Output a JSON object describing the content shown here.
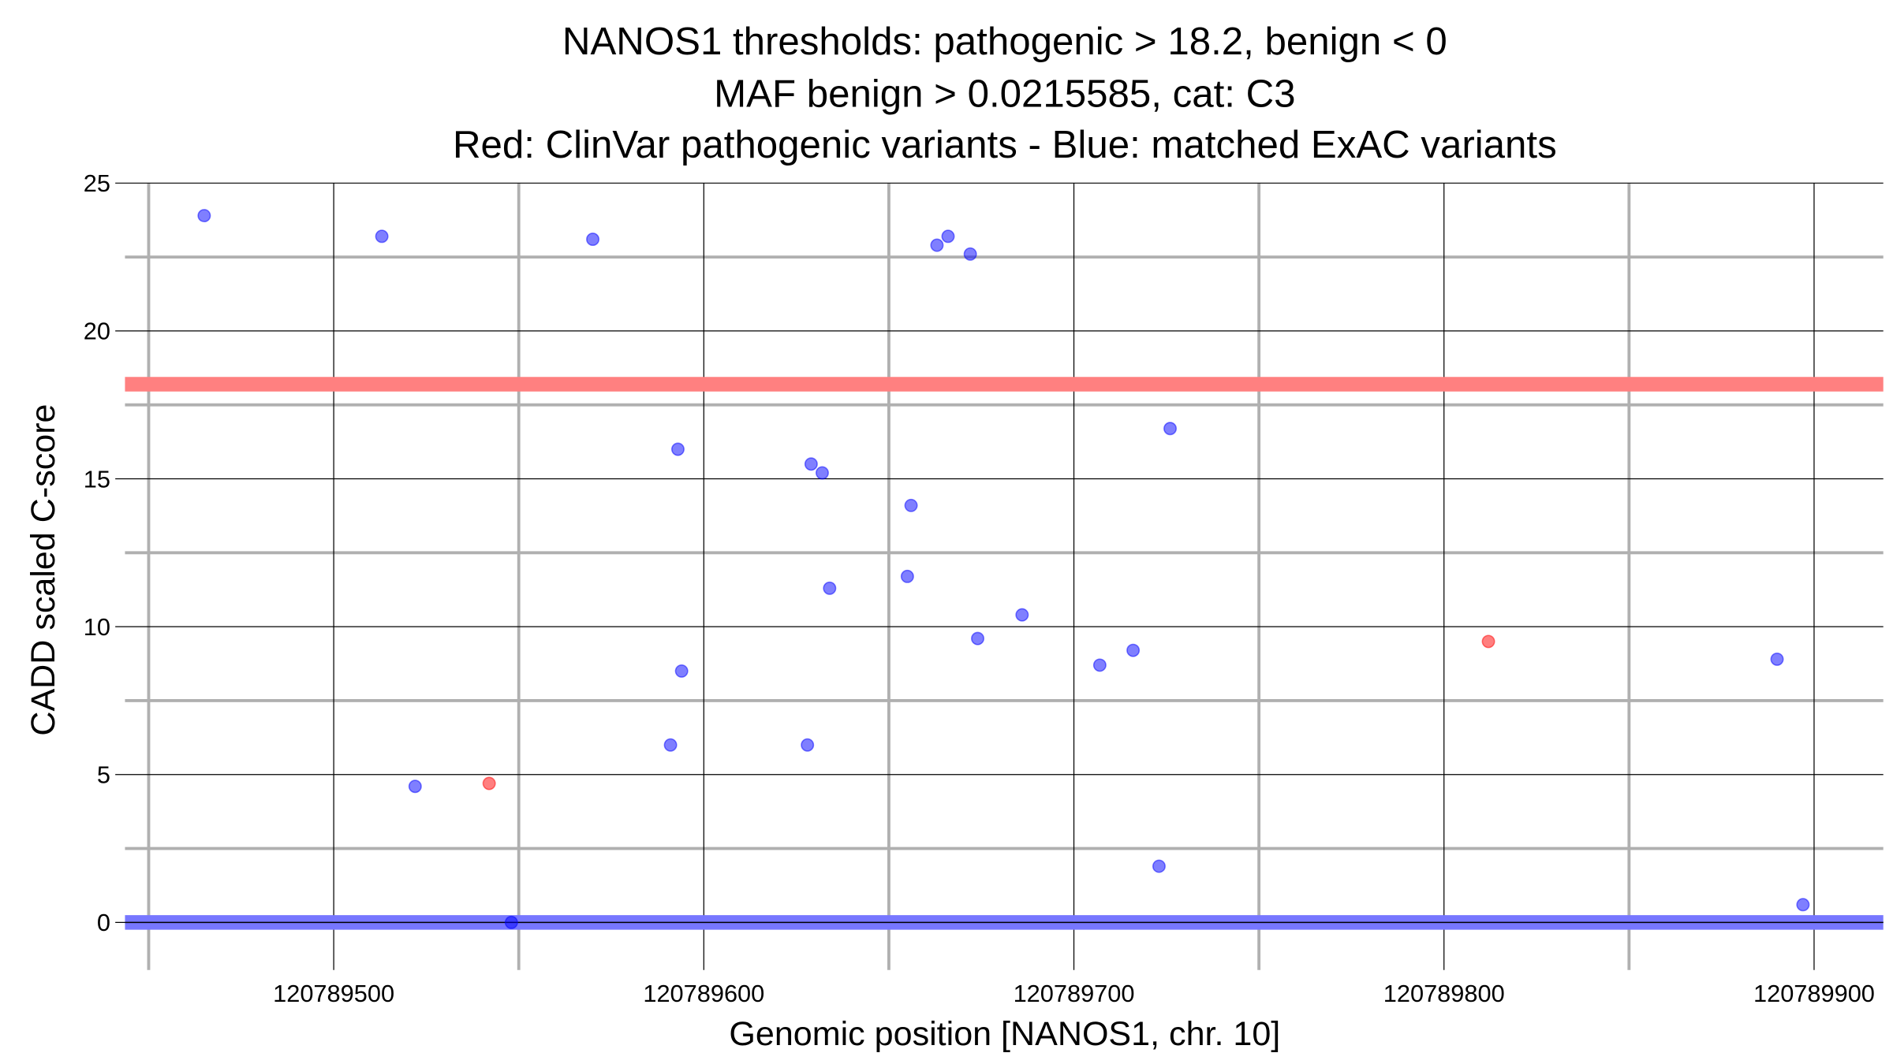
{
  "chart_data": {
    "type": "scatter",
    "title": [
      "NANOS1 thresholds: pathogenic > 18.2, benign < 0",
      "MAF benign > 0.0215585, cat: C3",
      "Red: ClinVar pathogenic variants - Blue: matched ExAC variants"
    ],
    "xlabel": "Genomic position [NANOS1, chr. 10]",
    "ylabel": "CADD scaled C-score",
    "xlim": [
      120789443.6,
      120789918.7
    ],
    "ylim": [
      -1.2,
      25
    ],
    "x_ticks": [
      120789500,
      120789600,
      120789700,
      120789800,
      120789900
    ],
    "x_tick_labels": [
      "120789500",
      "120789600",
      "120789700",
      "120789800",
      "120789900"
    ],
    "x_minor": [
      120789450,
      120789550,
      120789650,
      120789750,
      120789850
    ],
    "y_ticks": [
      0,
      5,
      10,
      15,
      20,
      25
    ],
    "y_tick_labels": [
      "0",
      "5",
      "10",
      "15",
      "20",
      "25"
    ],
    "y_minor": [
      2.5,
      7.5,
      12.5,
      17.5,
      22.5
    ],
    "grid": true,
    "thresholds": {
      "pathogenic": 18.2,
      "benign": 0
    },
    "colors": {
      "pathogenic": "#ff0000",
      "benign": "#0000ff",
      "pathogenic_line": "#ff8080",
      "benign_line": "#7777ff"
    },
    "series": [
      {
        "name": "ClinVar pathogenic",
        "color": "#ff0000",
        "x": [
          120789542,
          120789812
        ],
        "y": [
          4.7,
          9.5
        ]
      },
      {
        "name": "matched ExAC",
        "color": "#0000ff",
        "x": [
          120789465,
          120789513,
          120789570,
          120789663,
          120789666,
          120789672,
          120789593,
          120789629,
          120789632,
          120789656,
          120789726,
          120789655,
          120789634,
          120789686,
          120789674,
          120789707,
          120789716,
          120789890,
          120789594,
          120789591,
          120789628,
          120789522,
          120789723,
          120789897,
          120789548
        ],
        "y": [
          23.9,
          23.2,
          23.1,
          22.9,
          23.2,
          22.6,
          16.0,
          15.5,
          15.2,
          14.1,
          16.7,
          11.7,
          11.3,
          10.4,
          9.6,
          8.7,
          9.2,
          8.9,
          8.5,
          6.0,
          6.0,
          4.6,
          1.9,
          0.6,
          0.0
        ]
      }
    ]
  }
}
